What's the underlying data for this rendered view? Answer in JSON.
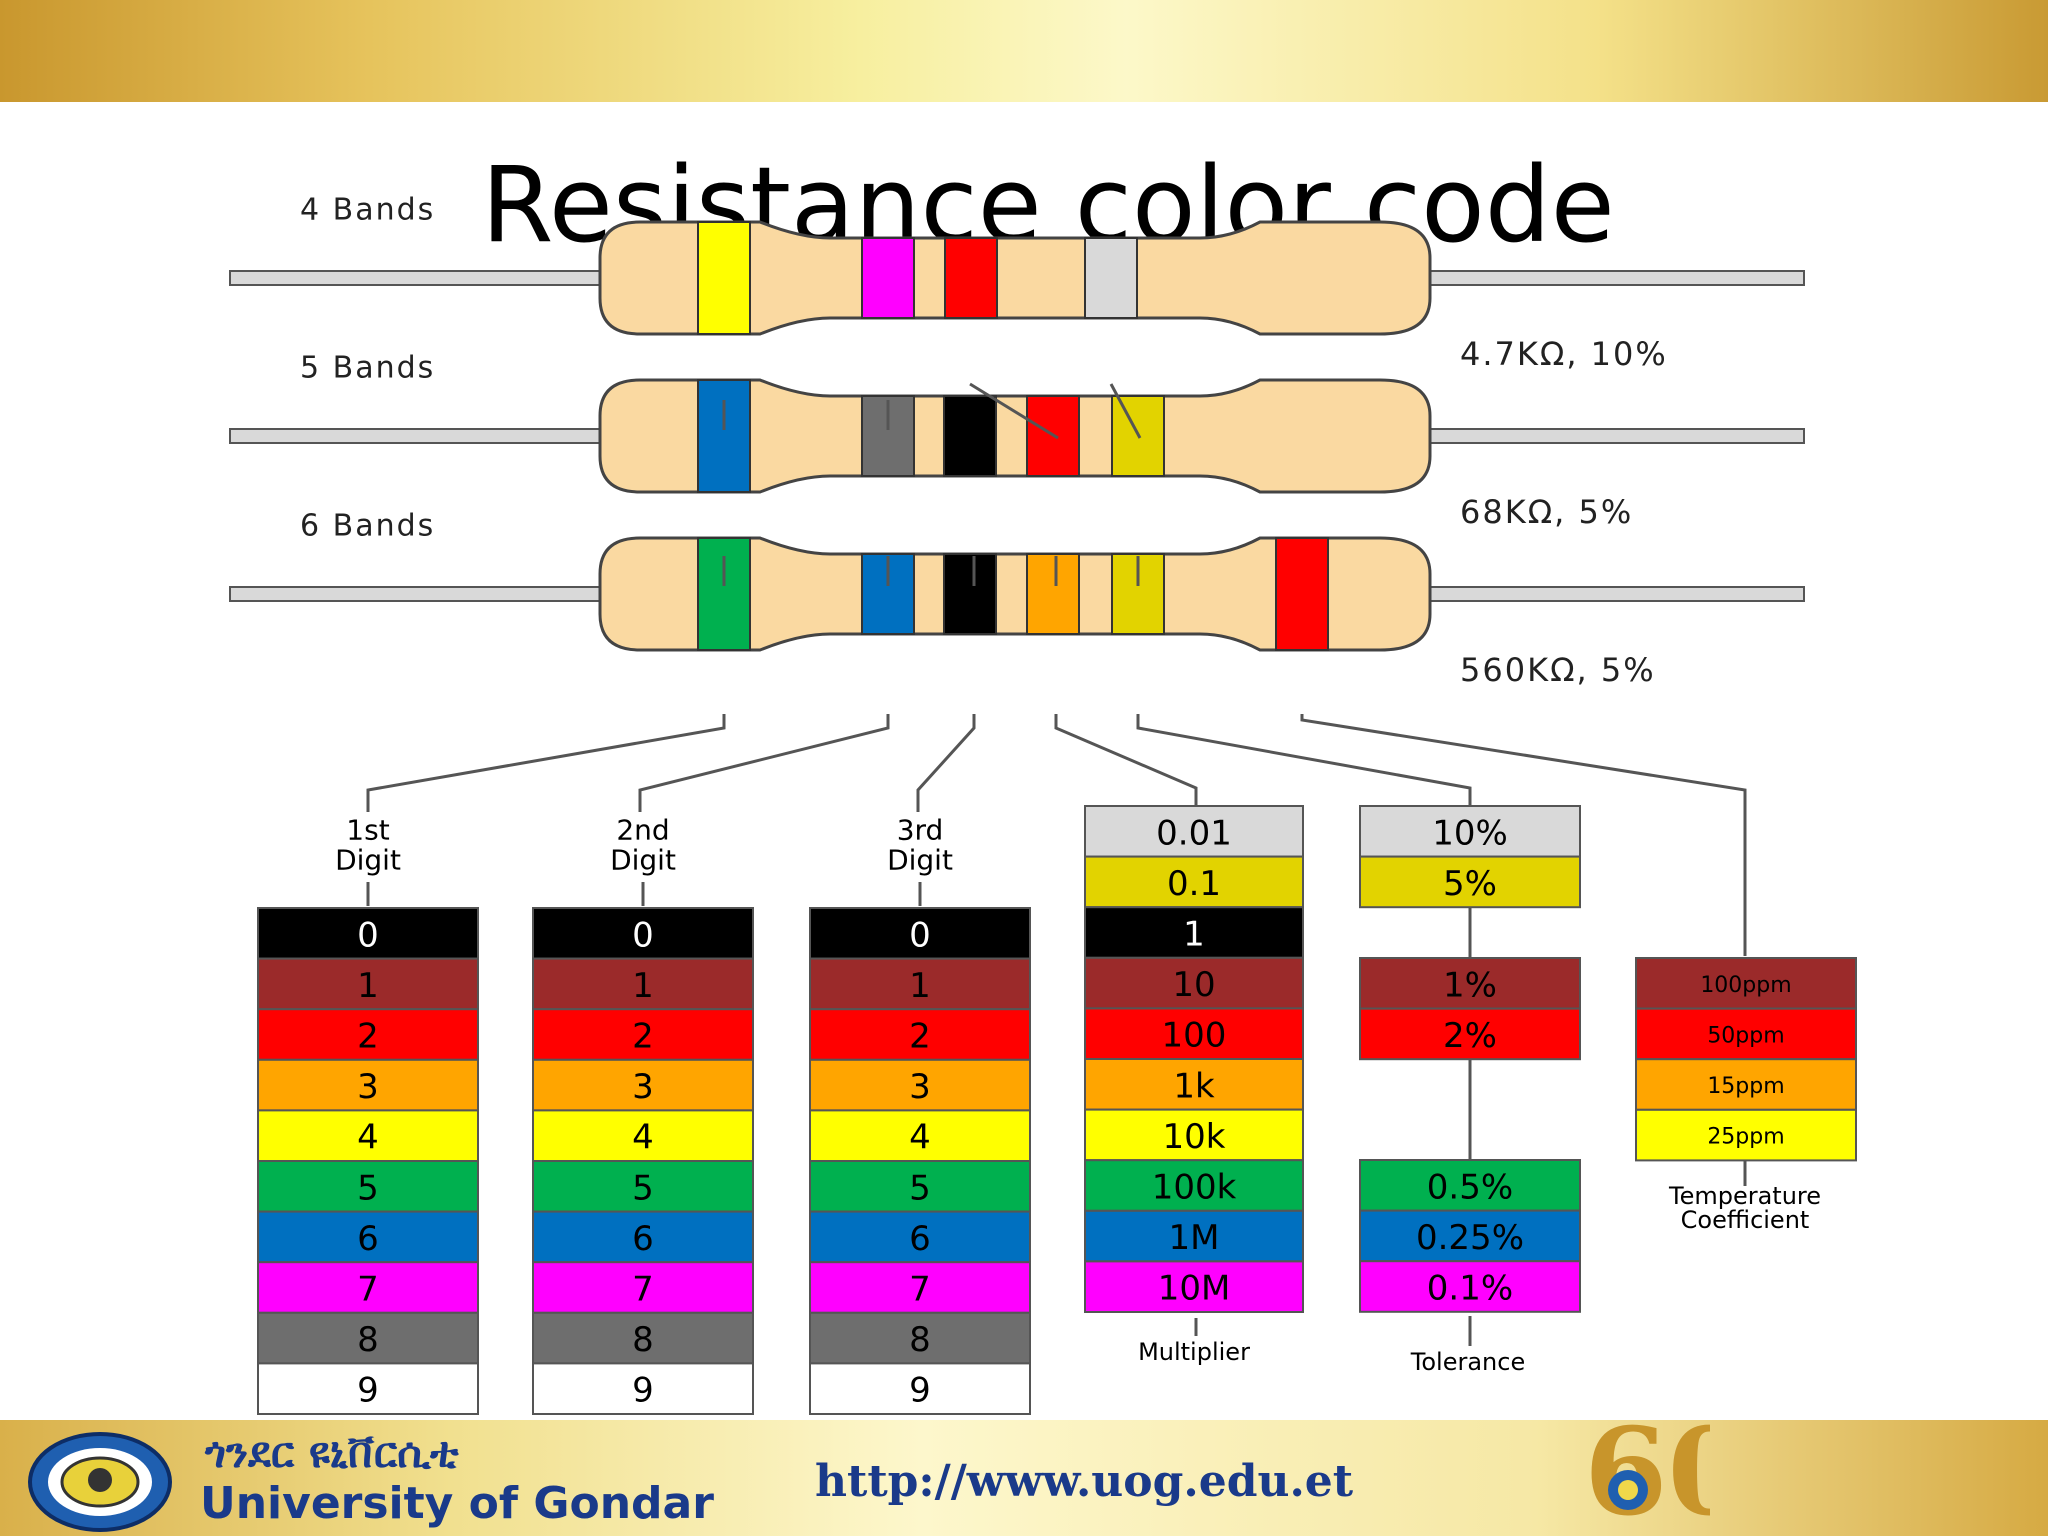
{
  "slide": {
    "title": "Resistance color code",
    "footer": {
      "university_amharic": "ጎንደር ዩኒቨርሲቲ",
      "university_english": "University of Gondar",
      "url": "http://www.uog.edu.et",
      "anniversary_logo_text": "60"
    }
  },
  "colors": {
    "black": "#000000",
    "brown": "#9b2a2a",
    "red": "#ff0000",
    "orange": "#ffa500",
    "yellow": "#ffff00",
    "green": "#00b04f",
    "blue": "#0070c0",
    "violet": "#ff00ff",
    "gray": "#6e6e6e",
    "white": "#ffffff",
    "gold": "#e2d300",
    "silver": "#d9d9d9",
    "body": "#fad9a1"
  },
  "resistors": [
    {
      "label": "4 Bands",
      "value": "4.7KΩ, 10%",
      "bands": [
        "yellow",
        "violet",
        "red",
        "silver"
      ]
    },
    {
      "label": "5 Bands",
      "value": "68KΩ, 5%",
      "bands": [
        "blue",
        "gray",
        "black",
        "red",
        "gold"
      ]
    },
    {
      "label": "6 Bands",
      "value": "560KΩ, 5%",
      "bands": [
        "green",
        "blue",
        "black",
        "orange",
        "gold",
        "red"
      ]
    }
  ],
  "digit_columns": [
    {
      "label": [
        "1st",
        "Digit"
      ]
    },
    {
      "label": [
        "2nd",
        "Digit"
      ]
    },
    {
      "label": [
        "3rd",
        "Digit"
      ]
    }
  ],
  "digit_rows": [
    {
      "text": "0",
      "color": "black"
    },
    {
      "text": "1",
      "color": "brown"
    },
    {
      "text": "2",
      "color": "red"
    },
    {
      "text": "3",
      "color": "orange"
    },
    {
      "text": "4",
      "color": "yellow"
    },
    {
      "text": "5",
      "color": "green"
    },
    {
      "text": "6",
      "color": "blue"
    },
    {
      "text": "7",
      "color": "violet"
    },
    {
      "text": "8",
      "color": "gray"
    },
    {
      "text": "9",
      "color": "white"
    }
  ],
  "multiplier": {
    "label": "Multiplier",
    "rows": [
      {
        "text": "0.01",
        "color": "silver"
      },
      {
        "text": "0.1",
        "color": "gold"
      },
      {
        "text": "1",
        "color": "black"
      },
      {
        "text": "10",
        "color": "brown"
      },
      {
        "text": "100",
        "color": "red"
      },
      {
        "text": "1k",
        "color": "orange"
      },
      {
        "text": "10k",
        "color": "yellow"
      },
      {
        "text": "100k",
        "color": "green"
      },
      {
        "text": "1M",
        "color": "blue"
      },
      {
        "text": "10M",
        "color": "violet"
      }
    ]
  },
  "tolerance": {
    "label": "Tolerance",
    "groups": [
      [
        {
          "text": "10%",
          "color": "silver"
        },
        {
          "text": "5%",
          "color": "gold"
        }
      ],
      [
        {
          "text": "1%",
          "color": "brown"
        },
        {
          "text": "2%",
          "color": "red"
        }
      ],
      [
        {
          "text": "0.5%",
          "color": "green"
        },
        {
          "text": "0.25%",
          "color": "blue"
        },
        {
          "text": "0.1%",
          "color": "violet"
        }
      ]
    ]
  },
  "temperature": {
    "label": [
      "Temperature",
      "Coefficient"
    ],
    "rows": [
      {
        "text": "100ppm",
        "color": "brown"
      },
      {
        "text": "50ppm",
        "color": "red"
      },
      {
        "text": "15ppm",
        "color": "orange"
      },
      {
        "text": "25ppm",
        "color": "yellow"
      }
    ]
  }
}
